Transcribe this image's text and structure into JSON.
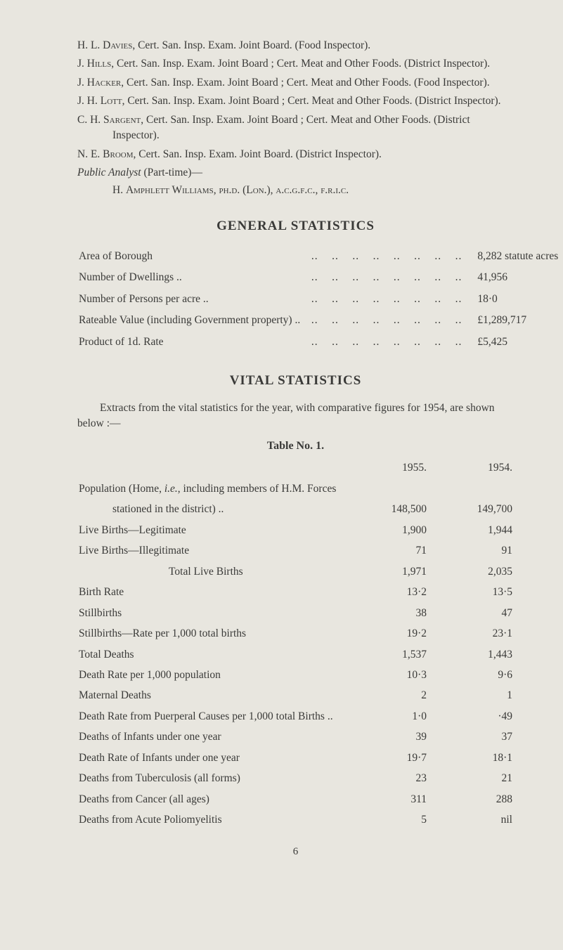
{
  "inspectors": [
    {
      "initials": "H. L.",
      "surname": "Davies",
      "rest": ", Cert. San. Insp. Exam. Joint Board. (Food Inspector)."
    },
    {
      "initials": "J.",
      "surname": "Hills",
      "rest": ", Cert. San. Insp. Exam. Joint Board ; Cert. Meat and Other Foods. (District Inspector)."
    },
    {
      "initials": "J.",
      "surname": "Hacker",
      "rest": ", Cert. San. Insp. Exam. Joint Board ; Cert. Meat and Other Foods. (Food Inspector)."
    },
    {
      "initials": "J. H.",
      "surname": "Lott",
      "rest": ", Cert. San. Insp. Exam. Joint Board ; Cert. Meat and Other Foods. (District Inspector)."
    },
    {
      "initials": "C. H.",
      "surname": "Sargent",
      "rest": ", Cert. San. Insp. Exam. Joint Board ; Cert. Meat and Other Foods. (District Inspector)."
    },
    {
      "initials": "N. E.",
      "surname": "Broom",
      "rest": ", Cert. San. Insp. Exam. Joint Board. (District Inspector)."
    }
  ],
  "analyst": {
    "line1_pre": "Public Analyst",
    "line1_post": " (Part-time)—",
    "line2_pre": "H. ",
    "line2_name": "Amphlett Williams",
    "line2_post": ", ",
    "line2_quals": "ph.d. (Lon.), a.c.g.f.c., f.r.i.c."
  },
  "general_heading": "GENERAL  STATISTICS",
  "general_rows": [
    {
      "label": "Area of Borough",
      "value": "8,282 statute acres"
    },
    {
      "label": "Number of Dwellings ..",
      "value": "41,956"
    },
    {
      "label": "Number of Persons per acre ..",
      "value": "18·0"
    },
    {
      "label": "Rateable Value (including Government property) ..",
      "value": "£1,289,717"
    },
    {
      "label": "Product of 1d. Rate",
      "value": "£5,425"
    }
  ],
  "vital_heading": "VITAL  STATISTICS",
  "vital_intro": "Extracts from the vital statistics for the year, with comparative figures for 1954, are shown below :—",
  "table_caption": "Table No. 1.",
  "year_a": "1955.",
  "year_b": "1954.",
  "population_line": "Population (Home, i.e., including members of H.M. Forces",
  "vital_rows": [
    {
      "label": "stationed in the district) ..",
      "a": "148,500",
      "b": "149,700",
      "cls": "sub-indent"
    },
    {
      "label": "Live Births—Legitimate",
      "a": "1,900",
      "b": "1,944"
    },
    {
      "label": "Live Births—Illegitimate",
      "a": "71",
      "b": "91"
    },
    {
      "label": "Total Live Births",
      "a": "1,971",
      "b": "2,035",
      "cls": "center-indent"
    },
    {
      "label": "Birth Rate",
      "a": "13·2",
      "b": "13·5"
    },
    {
      "label": "Stillbirths",
      "a": "38",
      "b": "47"
    },
    {
      "label": "Stillbirths—Rate per 1,000 total births",
      "a": "19·2",
      "b": "23·1"
    },
    {
      "label": "Total Deaths",
      "a": "1,537",
      "b": "1,443"
    },
    {
      "label": "Death Rate per 1,000 population",
      "a": "10·3",
      "b": "9·6"
    },
    {
      "label": "Maternal Deaths",
      "a": "2",
      "b": "1"
    },
    {
      "label": "Death Rate from Puerperal Causes per 1,000 total Births ..",
      "a": "1·0",
      "b": "·49"
    },
    {
      "label": "Deaths of Infants under one year",
      "a": "39",
      "b": "37"
    },
    {
      "label": "Death Rate of Infants under one year",
      "a": "19·7",
      "b": "18·1"
    },
    {
      "label": "Deaths from Tuberculosis (all forms)",
      "a": "23",
      "b": "21"
    },
    {
      "label": "Deaths from Cancer (all ages)",
      "a": "311",
      "b": "288"
    },
    {
      "label": "Deaths from Acute Poliomyelitis",
      "a": "5",
      "b": "nil"
    }
  ],
  "page_number": "6"
}
